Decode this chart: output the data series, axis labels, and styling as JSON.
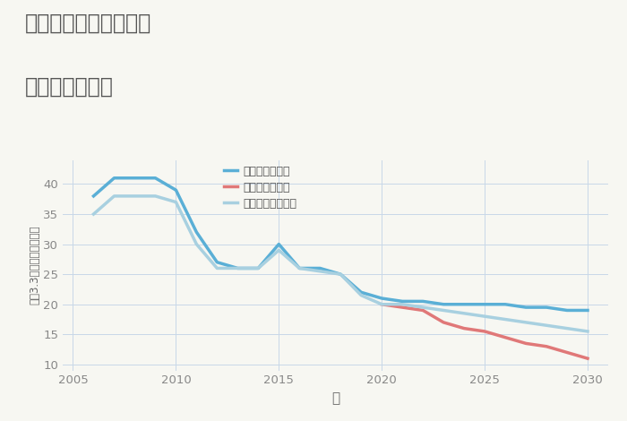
{
  "title_line1": "兵庫県姫路市大塩町の",
  "title_line2": "土地の価格推移",
  "xlabel": "年",
  "ylabel": "坪（3.3㎡）単価（万円）",
  "background_color": "#f7f7f2",
  "plot_background": "#f7f7f2",
  "grid_color": "#c8d8e8",
  "good_scenario": {
    "label": "グッドシナリオ",
    "color": "#5aafd6",
    "years": [
      2006,
      2007,
      2008,
      2009,
      2010,
      2011,
      2012,
      2013,
      2014,
      2015,
      2016,
      2017,
      2018,
      2019,
      2020,
      2021,
      2022,
      2023,
      2024,
      2025,
      2026,
      2027,
      2028,
      2029,
      2030
    ],
    "values": [
      38,
      41,
      41,
      41,
      39,
      32,
      27,
      26,
      26,
      30,
      26,
      26,
      25,
      22,
      21,
      20.5,
      20.5,
      20,
      20,
      20,
      20,
      19.5,
      19.5,
      19,
      19
    ]
  },
  "bad_scenario": {
    "label": "バッドシナリオ",
    "color": "#e07878",
    "years": [
      2020,
      2021,
      2022,
      2023,
      2024,
      2025,
      2026,
      2027,
      2028,
      2029,
      2030
    ],
    "values": [
      20,
      19.5,
      19,
      17,
      16,
      15.5,
      14.5,
      13.5,
      13,
      12,
      11
    ]
  },
  "normal_scenario": {
    "label": "ノーマルシナリオ",
    "color": "#a8d0e0",
    "years": [
      2006,
      2007,
      2008,
      2009,
      2010,
      2011,
      2012,
      2013,
      2014,
      2015,
      2016,
      2017,
      2018,
      2019,
      2020,
      2021,
      2022,
      2023,
      2024,
      2025,
      2026,
      2027,
      2028,
      2029,
      2030
    ],
    "values": [
      35,
      38,
      38,
      38,
      37,
      30,
      26,
      26,
      26,
      29,
      26,
      25.5,
      25,
      21.5,
      20,
      20,
      19.5,
      19,
      18.5,
      18,
      17.5,
      17,
      16.5,
      16,
      15.5
    ]
  },
  "ylim": [
    9,
    44
  ],
  "yticks": [
    10,
    15,
    20,
    25,
    30,
    35,
    40
  ],
  "xlim": [
    2004.5,
    2031
  ],
  "xticks": [
    2005,
    2010,
    2015,
    2020,
    2025,
    2030
  ]
}
